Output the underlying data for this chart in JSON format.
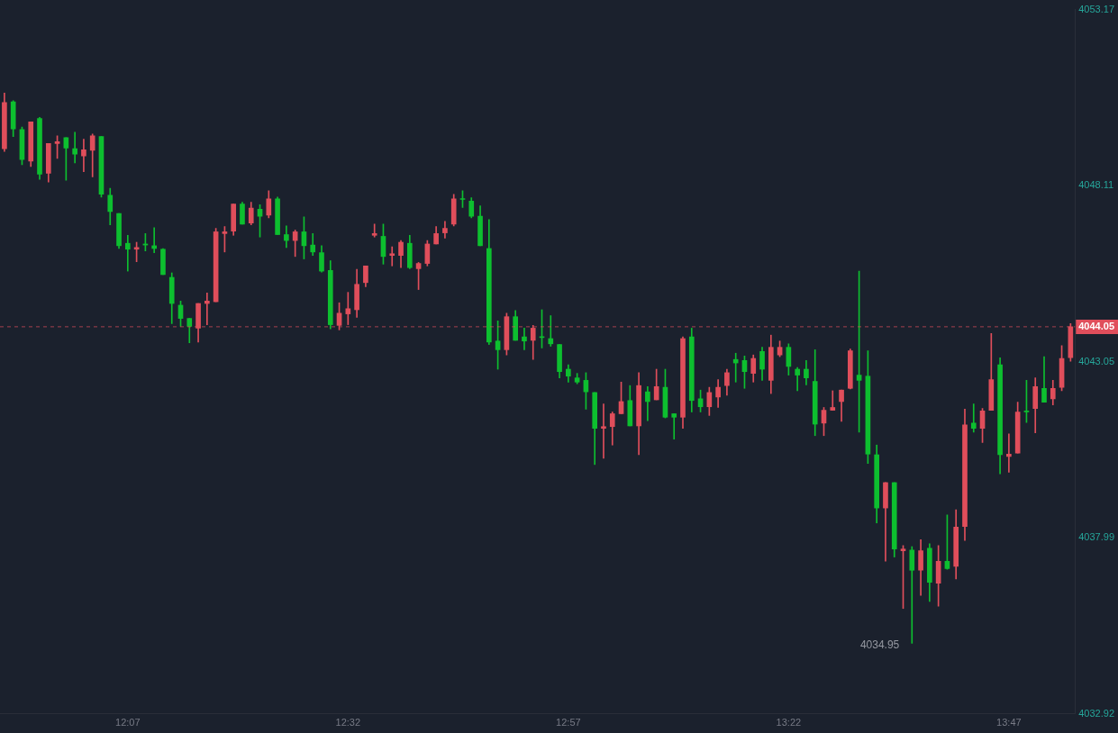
{
  "chart_data": {
    "type": "candlestick",
    "categories": [
      null,
      null,
      null,
      null,
      null,
      null,
      null,
      null,
      null,
      null,
      null,
      null,
      null,
      null,
      "12:07",
      null,
      null,
      null,
      null,
      null,
      null,
      null,
      null,
      null,
      null,
      null,
      null,
      null,
      null,
      null,
      null,
      null,
      null,
      null,
      null,
      null,
      null,
      null,
      null,
      "12:32",
      null,
      null,
      null,
      null,
      null,
      null,
      null,
      null,
      null,
      null,
      null,
      null,
      null,
      null,
      null,
      null,
      null,
      null,
      null,
      null,
      null,
      null,
      null,
      null,
      "12:57",
      null,
      null,
      null,
      null,
      null,
      null,
      null,
      null,
      null,
      null,
      null,
      null,
      null,
      null,
      null,
      null,
      null,
      null,
      null,
      null,
      null,
      null,
      null,
      null,
      "13:22",
      null,
      null,
      null,
      null,
      null,
      null,
      null,
      null,
      null,
      null,
      null,
      null,
      null,
      null,
      null,
      null,
      null,
      null,
      null,
      null,
      null,
      null,
      null,
      null,
      "13:47",
      null,
      null,
      null,
      null,
      null,
      null,
      null
    ],
    "ohlc": [
      [
        4049.17,
        4050.77,
        4049.09,
        4050.5
      ],
      [
        4050.52,
        4050.55,
        4049.52,
        4049.74
      ],
      [
        4049.72,
        4049.79,
        4048.71,
        4048.86
      ],
      [
        4048.81,
        4049.94,
        4048.66,
        4049.94
      ],
      [
        4050.04,
        4050.07,
        4048.29,
        4048.44
      ],
      [
        4048.46,
        4049.32,
        4048.21,
        4049.32
      ],
      [
        4049.32,
        4049.54,
        4048.89,
        4049.37
      ],
      [
        4049.49,
        4049.49,
        4048.26,
        4049.19
      ],
      [
        4049.17,
        4049.64,
        4048.76,
        4049.01
      ],
      [
        4048.96,
        4049.44,
        4048.51,
        4049.14
      ],
      [
        4049.12,
        4049.59,
        4048.36,
        4049.54
      ],
      [
        4049.52,
        4049.52,
        4047.78,
        4047.86
      ],
      [
        4047.83,
        4048.03,
        4046.98,
        4047.36
      ],
      [
        4047.31,
        4047.31,
        4046.3,
        4046.38
      ],
      [
        4046.45,
        4046.68,
        4045.65,
        4046.28
      ],
      [
        4046.28,
        4046.48,
        4045.92,
        4046.33
      ],
      [
        4046.43,
        4046.73,
        4046.23,
        4046.4
      ],
      [
        4046.38,
        4046.9,
        4046.18,
        4046.3
      ],
      [
        4046.28,
        4046.3,
        4045.55,
        4045.55
      ],
      [
        4045.47,
        4045.6,
        4044.14,
        4044.72
      ],
      [
        4044.67,
        4044.79,
        4044.06,
        4044.29
      ],
      [
        4044.29,
        4044.29,
        4043.59,
        4044.06
      ],
      [
        4044.01,
        4044.72,
        4043.61,
        4044.72
      ],
      [
        4044.72,
        4045.02,
        4044.11,
        4044.79
      ],
      [
        4044.77,
        4046.88,
        4044.77,
        4046.78
      ],
      [
        4046.73,
        4046.93,
        4046.2,
        4046.78
      ],
      [
        4046.8,
        4047.58,
        4046.68,
        4047.58
      ],
      [
        4047.58,
        4047.63,
        4047.0,
        4047.0
      ],
      [
        4047.03,
        4047.63,
        4046.98,
        4047.46
      ],
      [
        4047.43,
        4047.56,
        4046.63,
        4047.23
      ],
      [
        4047.26,
        4047.96,
        4047.18,
        4047.73
      ],
      [
        4047.73,
        4047.78,
        4046.7,
        4046.7
      ],
      [
        4046.7,
        4046.95,
        4046.33,
        4046.53
      ],
      [
        4046.53,
        4046.83,
        4046.07,
        4046.78
      ],
      [
        4046.78,
        4047.21,
        4046.0,
        4046.38
      ],
      [
        4046.4,
        4046.73,
        4046.1,
        4046.2
      ],
      [
        4046.18,
        4046.38,
        4045.62,
        4045.65
      ],
      [
        4045.67,
        4045.95,
        4043.99,
        4044.11
      ],
      [
        4044.09,
        4044.74,
        4043.96,
        4044.44
      ],
      [
        4044.42,
        4045.04,
        4044.11,
        4044.57
      ],
      [
        4044.54,
        4045.7,
        4044.32,
        4045.27
      ],
      [
        4045.32,
        4045.8,
        4045.2,
        4045.8
      ],
      [
        4046.68,
        4047.0,
        4046.63,
        4046.73
      ],
      [
        4046.65,
        4047.0,
        4045.85,
        4046.07
      ],
      [
        4046.1,
        4046.35,
        4045.8,
        4046.15
      ],
      [
        4046.1,
        4046.53,
        4045.75,
        4046.48
      ],
      [
        4046.45,
        4046.68,
        4045.72,
        4045.75
      ],
      [
        4045.72,
        4045.9,
        4045.12,
        4045.87
      ],
      [
        4045.87,
        4046.53,
        4045.8,
        4046.43
      ],
      [
        4046.43,
        4046.93,
        4046.43,
        4046.73
      ],
      [
        4046.75,
        4047.08,
        4046.6,
        4046.88
      ],
      [
        4047.0,
        4047.86,
        4046.95,
        4047.73
      ],
      [
        4047.73,
        4047.96,
        4047.48,
        4047.71
      ],
      [
        4047.66,
        4047.76,
        4047.18,
        4047.23
      ],
      [
        4047.23,
        4047.53,
        4046.38,
        4046.38
      ],
      [
        4046.3,
        4047.13,
        4043.54,
        4043.61
      ],
      [
        4043.64,
        4044.22,
        4042.83,
        4043.39
      ],
      [
        4043.39,
        4044.44,
        4043.24,
        4044.34
      ],
      [
        4044.34,
        4044.52,
        4043.66,
        4043.66
      ],
      [
        4043.76,
        4044.01,
        4043.39,
        4043.64
      ],
      [
        4043.66,
        4044.09,
        4043.11,
        4044.01
      ],
      [
        4043.76,
        4044.54,
        4043.44,
        4043.74
      ],
      [
        4043.71,
        4044.37,
        4043.49,
        4043.56
      ],
      [
        4043.54,
        4043.54,
        4042.58,
        4042.76
      ],
      [
        4042.83,
        4042.96,
        4042.46,
        4042.63
      ],
      [
        4042.58,
        4042.71,
        4042.41,
        4042.46
      ],
      [
        4042.51,
        4042.73,
        4041.68,
        4042.18
      ],
      [
        4042.16,
        4042.16,
        4040.09,
        4041.13
      ],
      [
        4041.13,
        4041.83,
        4040.27,
        4041.18
      ],
      [
        4041.18,
        4041.6,
        4040.65,
        4041.55
      ],
      [
        4041.55,
        4042.46,
        4041.55,
        4041.9
      ],
      [
        4041.93,
        4042.36,
        4041.2,
        4041.2
      ],
      [
        4041.2,
        4042.73,
        4040.37,
        4042.36
      ],
      [
        4042.18,
        4042.33,
        4041.35,
        4041.9
      ],
      [
        4041.95,
        4042.83,
        4041.95,
        4042.33
      ],
      [
        4042.31,
        4042.83,
        4041.43,
        4041.45
      ],
      [
        4041.55,
        4041.55,
        4040.82,
        4041.45
      ],
      [
        4041.45,
        4043.76,
        4041.13,
        4043.71
      ],
      [
        4043.76,
        4044.01,
        4041.6,
        4041.93
      ],
      [
        4041.98,
        4042.23,
        4041.6,
        4041.75
      ],
      [
        4041.75,
        4042.31,
        4041.5,
        4042.16
      ],
      [
        4042.03,
        4042.53,
        4041.73,
        4042.31
      ],
      [
        4042.36,
        4042.83,
        4042.08,
        4042.73
      ],
      [
        4043.11,
        4043.29,
        4042.46,
        4043.01
      ],
      [
        4043.08,
        4043.21,
        4042.28,
        4042.76
      ],
      [
        4042.71,
        4043.24,
        4042.46,
        4043.14
      ],
      [
        4043.34,
        4043.46,
        4042.51,
        4042.83
      ],
      [
        4042.51,
        4043.81,
        4042.13,
        4043.46
      ],
      [
        4043.24,
        4043.64,
        4043.19,
        4043.46
      ],
      [
        4043.46,
        4043.56,
        4042.66,
        4042.91
      ],
      [
        4042.83,
        4042.88,
        4042.21,
        4042.66
      ],
      [
        4042.83,
        4043.08,
        4042.38,
        4042.58
      ],
      [
        4042.48,
        4043.39,
        4040.92,
        4041.25
      ],
      [
        4041.28,
        4041.73,
        4040.92,
        4041.65
      ],
      [
        4041.65,
        4042.21,
        4041.65,
        4041.73
      ],
      [
        4041.9,
        4042.23,
        4041.33,
        4042.23
      ],
      [
        4042.28,
        4043.41,
        4042.26,
        4043.36
      ],
      [
        4042.66,
        4045.65,
        4041.02,
        4042.51
      ],
      [
        4042.63,
        4043.36,
        4040.12,
        4040.39
      ],
      [
        4040.37,
        4040.65,
        4038.41,
        4038.84
      ],
      [
        4038.84,
        4039.57,
        4037.31,
        4039.57
      ],
      [
        4039.57,
        4039.57,
        4037.43,
        4037.66
      ],
      [
        4037.61,
        4037.76,
        4035.95,
        4037.66
      ],
      [
        4037.63,
        4037.73,
        4034.95,
        4037.05
      ],
      [
        4037.05,
        4037.93,
        4036.33,
        4037.61
      ],
      [
        4037.68,
        4037.81,
        4036.15,
        4036.7
      ],
      [
        4036.68,
        4037.76,
        4036.02,
        4037.31
      ],
      [
        4037.31,
        4038.64,
        4037.08,
        4037.1
      ],
      [
        4037.16,
        4038.79,
        4036.8,
        4038.29
      ],
      [
        4038.31,
        4041.68,
        4037.91,
        4041.23
      ],
      [
        4041.28,
        4041.83,
        4041.02,
        4041.13
      ],
      [
        4041.13,
        4041.7,
        4040.72,
        4041.63
      ],
      [
        4041.65,
        4043.86,
        4041.65,
        4042.53
      ],
      [
        4042.96,
        4043.16,
        4039.82,
        4040.37
      ],
      [
        4040.32,
        4040.97,
        4039.87,
        4040.39
      ],
      [
        4040.42,
        4041.88,
        4040.42,
        4041.6
      ],
      [
        4041.63,
        4042.51,
        4041.3,
        4041.6
      ],
      [
        4041.7,
        4042.58,
        4041.0,
        4042.33
      ],
      [
        4042.28,
        4043.19,
        4041.88,
        4041.88
      ],
      [
        4041.98,
        4042.51,
        4041.8,
        4042.28
      ],
      [
        4042.31,
        4043.51,
        4042.21,
        4043.14
      ],
      [
        4043.16,
        4044.14,
        4043.06,
        4044.05
      ]
    ],
    "colors": [
      "#e04e5b",
      "#0dbf2f",
      "#0dbf2f",
      "#e04e5b",
      "#0dbf2f",
      "#e04e5b",
      "#e04e5b",
      "#0dbf2f",
      "#0dbf2f",
      "#e04e5b",
      "#e04e5b",
      "#0dbf2f",
      "#0dbf2f",
      "#0dbf2f",
      "#0dbf2f",
      "#e04e5b",
      "#0dbf2f",
      "#0dbf2f",
      "#0dbf2f",
      "#0dbf2f",
      "#0dbf2f",
      "#0dbf2f",
      "#e04e5b",
      "#e04e5b",
      "#e04e5b",
      "#e04e5b",
      "#e04e5b",
      "#0dbf2f",
      "#e04e5b",
      "#0dbf2f",
      "#e04e5b",
      "#0dbf2f",
      "#0dbf2f",
      "#e04e5b",
      "#0dbf2f",
      "#0dbf2f",
      "#0dbf2f",
      "#0dbf2f",
      "#e04e5b",
      "#e04e5b",
      "#e04e5b",
      "#e04e5b",
      "#e04e5b",
      "#0dbf2f",
      "#e04e5b",
      "#e04e5b",
      "#0dbf2f",
      "#e04e5b",
      "#e04e5b",
      "#e04e5b",
      "#e04e5b",
      "#e04e5b",
      "#0dbf2f",
      "#0dbf2f",
      "#0dbf2f",
      "#0dbf2f",
      "#0dbf2f",
      "#e04e5b",
      "#0dbf2f",
      "#0dbf2f",
      "#e04e5b",
      "#0dbf2f",
      "#0dbf2f",
      "#0dbf2f",
      "#0dbf2f",
      "#0dbf2f",
      "#0dbf2f",
      "#0dbf2f",
      "#e04e5b",
      "#e04e5b",
      "#e04e5b",
      "#0dbf2f",
      "#e04e5b",
      "#0dbf2f",
      "#e04e5b",
      "#0dbf2f",
      "#0dbf2f",
      "#e04e5b",
      "#0dbf2f",
      "#0dbf2f",
      "#e04e5b",
      "#e04e5b",
      "#e04e5b",
      "#0dbf2f",
      "#0dbf2f",
      "#e04e5b",
      "#0dbf2f",
      "#e04e5b",
      "#e04e5b",
      "#0dbf2f",
      "#0dbf2f",
      "#0dbf2f",
      "#0dbf2f",
      "#e04e5b",
      "#e04e5b",
      "#e04e5b",
      "#e04e5b",
      "#0dbf2f",
      "#0dbf2f",
      "#0dbf2f",
      "#e04e5b",
      "#0dbf2f",
      "#e04e5b",
      "#0dbf2f",
      "#e04e5b",
      "#0dbf2f",
      "#e04e5b",
      "#0dbf2f",
      "#e04e5b",
      "#e04e5b",
      "#0dbf2f",
      "#e04e5b",
      "#e04e5b",
      "#0dbf2f",
      "#e04e5b",
      "#e04e5b",
      "#0dbf2f",
      "#e04e5b",
      "#0dbf2f",
      "#e04e5b",
      "#e04e5b",
      "#e04e5b"
    ],
    "ylim": [
      4032.92,
      4053.17
    ],
    "yticks": [
      4032.92,
      4037.99,
      4043.05,
      4048.11,
      4053.17
    ],
    "ref_lines": [
      {
        "axis": "y",
        "value": 4044.05,
        "label": "4044.05",
        "color": "#e04e5b",
        "line_style": "dashed"
      }
    ],
    "annotations": [
      "4034.95"
    ]
  }
}
